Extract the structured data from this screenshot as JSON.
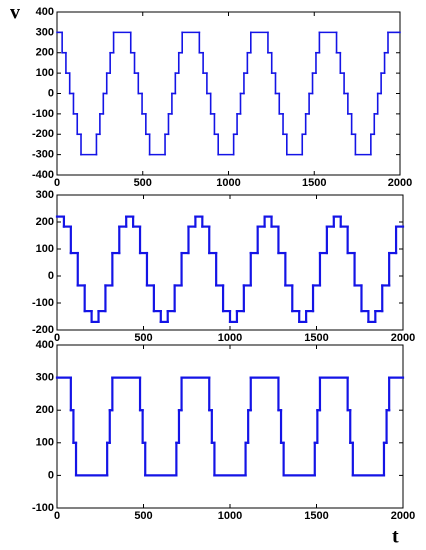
{
  "chart_data": [
    {
      "type": "step",
      "y_label": "v",
      "x": [
        0,
        30,
        52,
        74,
        96,
        118,
        140,
        230,
        250,
        270,
        290,
        310,
        330,
        430,
        452,
        474,
        496,
        518,
        540,
        630,
        650,
        670,
        690,
        710,
        730,
        830,
        852,
        874,
        896,
        918,
        940,
        1030,
        1050,
        1070,
        1090,
        1110,
        1130,
        1230,
        1252,
        1274,
        1296,
        1318,
        1340,
        1430,
        1450,
        1470,
        1490,
        1510,
        1530,
        1630,
        1652,
        1674,
        1696,
        1718,
        1740,
        1830,
        1850,
        1870,
        1890,
        1910,
        1930
      ],
      "values": [
        300,
        200,
        100,
        0,
        -100,
        -200,
        -300,
        -200,
        -100,
        0,
        100,
        200,
        300,
        200,
        100,
        0,
        -100,
        -200,
        -300,
        -200,
        -100,
        0,
        100,
        200,
        300,
        200,
        100,
        0,
        -100,
        -200,
        -300,
        -200,
        -100,
        0,
        100,
        200,
        300,
        200,
        100,
        0,
        -100,
        -200,
        -300,
        -200,
        -100,
        0,
        100,
        200,
        300,
        200,
        100,
        0,
        -100,
        -200,
        -300,
        -200,
        -100,
        0,
        100,
        200,
        300
      ],
      "color": "#1414e6",
      "xlim": [
        0,
        2000
      ],
      "xticks": [
        0,
        500,
        1000,
        1500,
        2000
      ],
      "ylim": [
        -400,
        400
      ],
      "yticks": [
        -400,
        -300,
        -200,
        -100,
        0,
        100,
        200,
        300,
        400
      ]
    },
    {
      "type": "step",
      "x": [
        0,
        40,
        80,
        120,
        160,
        200,
        240,
        280,
        320,
        360,
        400,
        440,
        480,
        520,
        560,
        600,
        640,
        680,
        720,
        760,
        800,
        840,
        880,
        920,
        960,
        1000,
        1040,
        1080,
        1120,
        1160,
        1200,
        1240,
        1280,
        1320,
        1360,
        1400,
        1440,
        1480,
        1520,
        1560,
        1600,
        1640,
        1680,
        1720,
        1760,
        1800,
        1840,
        1880,
        1920,
        1960
      ],
      "values": [
        220,
        183,
        85,
        -35,
        -130,
        -170,
        -130,
        -35,
        85,
        183,
        220,
        183,
        85,
        -35,
        -130,
        -170,
        -130,
        -35,
        85,
        183,
        220,
        183,
        85,
        -35,
        -130,
        -170,
        -130,
        -35,
        85,
        183,
        220,
        183,
        85,
        -35,
        -130,
        -170,
        -130,
        -35,
        85,
        183,
        220,
        183,
        85,
        -35,
        -130,
        -170,
        -130,
        -35,
        85,
        183
      ],
      "color": "#1414e6",
      "xlim": [
        0,
        2000
      ],
      "xticks": [
        0,
        500,
        1000,
        1500,
        2000
      ],
      "ylim": [
        -200,
        300
      ],
      "yticks": [
        -200,
        -100,
        0,
        100,
        200,
        300
      ]
    },
    {
      "type": "step",
      "x_label": "t",
      "x": [
        0,
        80,
        95,
        110,
        290,
        305,
        320,
        480,
        495,
        510,
        690,
        705,
        720,
        880,
        895,
        910,
        1090,
        1105,
        1120,
        1280,
        1295,
        1310,
        1490,
        1505,
        1520,
        1680,
        1695,
        1710,
        1890,
        1905,
        1920
      ],
      "values": [
        300,
        200,
        100,
        0,
        100,
        200,
        300,
        200,
        100,
        0,
        100,
        200,
        300,
        200,
        100,
        0,
        100,
        200,
        300,
        200,
        100,
        0,
        100,
        200,
        300,
        200,
        100,
        0,
        100,
        200,
        300
      ],
      "color": "#1414e6",
      "xlim": [
        0,
        2000
      ],
      "xticks": [
        0,
        500,
        1000,
        1500,
        2000
      ],
      "ylim": [
        -100,
        400
      ],
      "yticks": [
        -100,
        0,
        100,
        200,
        300,
        400
      ]
    }
  ]
}
